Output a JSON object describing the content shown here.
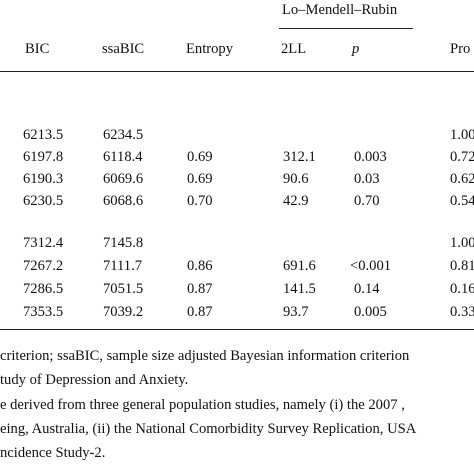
{
  "table": {
    "group_header": "Lo–Mendell–Rubin",
    "columns": [
      "BIC",
      "ssaBIC",
      "Entropy",
      "2LL",
      "p",
      "Pro"
    ],
    "groups": [
      {
        "rows": [
          [
            "6213.5",
            "6234.5",
            "",
            "",
            "",
            "1.00"
          ],
          [
            "6197.8",
            "6118.4",
            "0.69",
            "312.1",
            "0.003",
            "0.72"
          ],
          [
            "6190.3",
            "6069.6",
            "0.69",
            "90.6",
            "0.03",
            "0.62"
          ],
          [
            "6230.5",
            "6068.6",
            "0.70",
            "42.9",
            "0.70",
            "0.54"
          ]
        ]
      },
      {
        "rows": [
          [
            "7312.4",
            "7145.8",
            "",
            "",
            "",
            "1.00"
          ],
          [
            "7267.2",
            "7111.7",
            "0.86",
            "691.6",
            "<0.001",
            "0.81"
          ],
          [
            "7286.5",
            "7051.5",
            "0.87",
            "141.5",
            "0.14",
            "0.16"
          ],
          [
            "7353.5",
            "7039.2",
            "0.87",
            "93.7",
            "0.005",
            "0.33"
          ]
        ]
      }
    ]
  },
  "footnotes": [
    "criterion; ssaBIC, sample size adjusted Bayesian information criterion",
    "tudy of Depression and Anxiety.",
    "e derived from three general population studies, namely (i) the 2007 ,",
    "eing, Australia, (ii) the National Comorbidity Survey Replication, USA",
    "ncidence Study-2."
  ]
}
